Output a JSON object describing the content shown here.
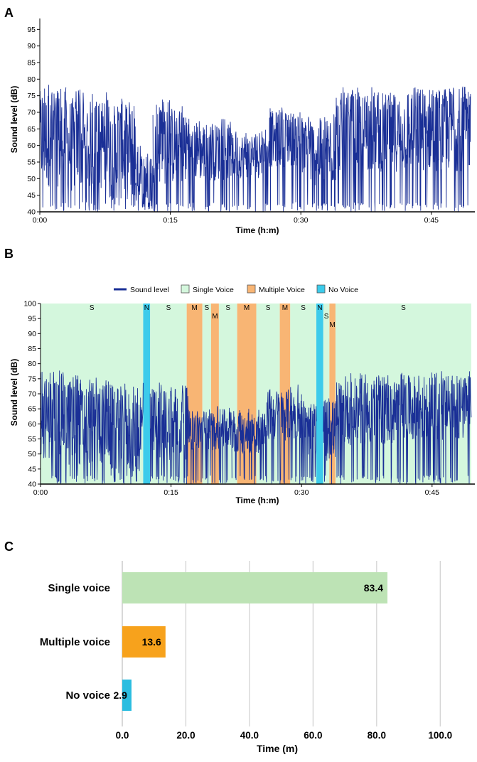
{
  "figure": {
    "panel_labels": [
      "A",
      "B",
      "C"
    ]
  },
  "chart_data": [
    {
      "panel": "A",
      "type": "line",
      "title": "",
      "xlabel": "Time (h:m)",
      "ylabel": "Sound level (dB)",
      "xlim": [
        0,
        50
      ],
      "ylim": [
        40,
        100
      ],
      "x_ticks": [
        0,
        15,
        30,
        45
      ],
      "x_tick_labels": [
        "0:00",
        "0:15",
        "0:30",
        "0:45"
      ],
      "y_ticks": [
        40,
        45,
        50,
        55,
        60,
        65,
        70,
        75,
        80,
        85,
        90,
        95
      ],
      "y_tick_labels": [
        "40",
        "45",
        "50",
        "55",
        "60",
        "65",
        "70",
        "75",
        "80",
        "85",
        "90",
        "95"
      ],
      "series": [
        {
          "name": "Sound level",
          "color": "#1a2f96",
          "envelope": [
            {
              "x": [
                0,
                3
              ],
              "min": 40,
              "max": 79,
              "mean": 62
            },
            {
              "x": [
                3,
                5.5
              ],
              "min": 40,
              "max": 77,
              "mean": 60
            },
            {
              "x": [
                5.5,
                8
              ],
              "min": 40,
              "max": 76,
              "mean": 60
            },
            {
              "x": [
                8,
                11
              ],
              "min": 40,
              "max": 75,
              "mean": 58
            },
            {
              "x": [
                11,
                13
              ],
              "min": 40,
              "max": 60,
              "mean": 50
            },
            {
              "x": [
                13,
                17
              ],
              "min": 40,
              "max": 74,
              "mean": 60
            },
            {
              "x": [
                17,
                22
              ],
              "min": 40,
              "max": 68,
              "mean": 58
            },
            {
              "x": [
                22,
                26
              ],
              "min": 40,
              "max": 65,
              "mean": 57
            },
            {
              "x": [
                26,
                30
              ],
              "min": 40,
              "max": 72,
              "mean": 62
            },
            {
              "x": [
                30,
                34
              ],
              "min": 40,
              "max": 70,
              "mean": 58
            },
            {
              "x": [
                34,
                42
              ],
              "min": 40,
              "max": 78,
              "mean": 64
            },
            {
              "x": [
                42,
                49.5
              ],
              "min": 40,
              "max": 80,
              "mean": 65
            }
          ]
        }
      ]
    },
    {
      "panel": "B",
      "type": "line",
      "title": "",
      "xlabel": "Time (h:m)",
      "ylabel": "Sound level (dB)",
      "xlim": [
        0,
        50
      ],
      "ylim": [
        40,
        100
      ],
      "x_ticks": [
        0,
        15,
        30,
        45
      ],
      "x_tick_labels": [
        "0:00",
        "0:15",
        "0:30",
        "0:45"
      ],
      "y_ticks": [
        40,
        45,
        50,
        55,
        60,
        65,
        70,
        75,
        80,
        85,
        90,
        95,
        100
      ],
      "y_tick_labels": [
        "40",
        "45",
        "50",
        "55",
        "60",
        "65",
        "70",
        "75",
        "80",
        "85",
        "90",
        "95",
        "100"
      ],
      "legend": {
        "placement": "top",
        "entries": [
          {
            "label": "Sound level",
            "kind": "line",
            "color": "#1a2f96"
          },
          {
            "label": "Single Voice",
            "kind": "box",
            "color": "#d4f7dd"
          },
          {
            "label": "Multiple Voice",
            "kind": "box",
            "color": "#f8b574"
          },
          {
            "label": "No Voice",
            "kind": "box",
            "color": "#3ccbeb"
          }
        ]
      },
      "segments": [
        {
          "start": 0,
          "end": 11.8,
          "type": "single",
          "label": "S"
        },
        {
          "start": 11.8,
          "end": 12.6,
          "type": "none",
          "label": "N"
        },
        {
          "start": 12.6,
          "end": 16.8,
          "type": "single",
          "label": "S"
        },
        {
          "start": 16.8,
          "end": 18.6,
          "type": "multiple",
          "label": "M"
        },
        {
          "start": 18.6,
          "end": 19.6,
          "type": "single",
          "label": "S"
        },
        {
          "start": 19.6,
          "end": 20.5,
          "type": "multiple",
          "label": "M"
        },
        {
          "start": 20.5,
          "end": 22.6,
          "type": "single",
          "label": "S"
        },
        {
          "start": 22.6,
          "end": 24.8,
          "type": "multiple",
          "label": "M"
        },
        {
          "start": 24.8,
          "end": 27.5,
          "type": "single",
          "label": "S"
        },
        {
          "start": 27.5,
          "end": 28.7,
          "type": "multiple",
          "label": "M"
        },
        {
          "start": 28.7,
          "end": 31.7,
          "type": "single",
          "label": "S"
        },
        {
          "start": 31.7,
          "end": 32.5,
          "type": "none",
          "label": "N"
        },
        {
          "start": 32.5,
          "end": 33.2,
          "type": "single",
          "label": "S"
        },
        {
          "start": 33.2,
          "end": 33.9,
          "type": "multiple",
          "label": "M"
        },
        {
          "start": 33.9,
          "end": 49.5,
          "type": "single",
          "label": "S"
        }
      ],
      "series": [
        {
          "name": "Sound level",
          "color": "#1a2f96",
          "envelope": [
            {
              "x": [
                0,
                3
              ],
              "min": 40,
              "max": 78,
              "mean": 62
            },
            {
              "x": [
                3,
                5.5
              ],
              "min": 40,
              "max": 77,
              "mean": 60
            },
            {
              "x": [
                5.5,
                8
              ],
              "min": 40,
              "max": 76,
              "mean": 60
            },
            {
              "x": [
                8,
                11.8
              ],
              "min": 40,
              "max": 75,
              "mean": 58
            },
            {
              "x": [
                12.6,
                17
              ],
              "min": 40,
              "max": 74,
              "mean": 60
            },
            {
              "x": [
                17,
                22
              ],
              "min": 40,
              "max": 66,
              "mean": 58
            },
            {
              "x": [
                22,
                26
              ],
              "min": 40,
              "max": 65,
              "mean": 57
            },
            {
              "x": [
                26,
                30
              ],
              "min": 40,
              "max": 73,
              "mean": 63
            },
            {
              "x": [
                30,
                31.7
              ],
              "min": 40,
              "max": 68,
              "mean": 58
            },
            {
              "x": [
                32.5,
                34
              ],
              "min": 40,
              "max": 70,
              "mean": 58
            },
            {
              "x": [
                34,
                42
              ],
              "min": 40,
              "max": 77,
              "mean": 64
            },
            {
              "x": [
                42,
                49.5
              ],
              "min": 40,
              "max": 78,
              "mean": 65
            }
          ]
        }
      ]
    },
    {
      "panel": "C",
      "type": "bar",
      "orientation": "horizontal",
      "title": "",
      "xlabel": "Time (m)",
      "ylabel": "",
      "xlim": [
        0,
        110
      ],
      "x_ticks": [
        0,
        20,
        40,
        60,
        80,
        100
      ],
      "x_tick_labels": [
        "0.0",
        "20.0",
        "40.0",
        "60.0",
        "80.0",
        "100.0"
      ],
      "grid": true,
      "categories": [
        "Single voice",
        "Multiple voice",
        "No voice"
      ],
      "values": [
        83.4,
        13.6,
        2.9
      ],
      "value_labels": [
        "83.4",
        "13.6",
        "2.9"
      ],
      "colors": [
        "#bde3b5",
        "#f7a21c",
        "#2bbde0"
      ]
    }
  ]
}
